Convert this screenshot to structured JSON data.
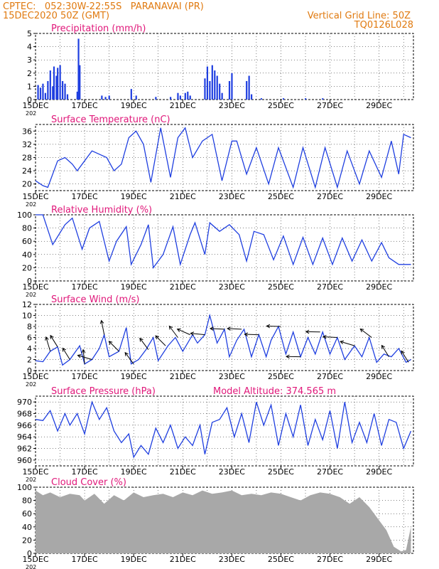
{
  "header": {
    "line1_left": "CPTEC:   052:30W-22:55S   PARANAVAI (PR)",
    "line2_left": "15DEC2020 50Z (GMT)",
    "line2_right": "Vertical Grid Line: 50Z",
    "line3_right": "TQ0126L028",
    "color": "#e07a10"
  },
  "colors": {
    "title": "#e0187a",
    "line": "#1f3fe0",
    "bar": "#1f3fe0",
    "cloud": "#a8a8a8",
    "grid": "#000000"
  },
  "x_axis": {
    "labels": [
      "15DEC",
      "17DEC",
      "19DEC",
      "21DEC",
      "23DEC",
      "25DEC",
      "27DEC",
      "29DEC"
    ],
    "sub_label": "202",
    "start_day": 15,
    "end_day": 30
  },
  "chart_data": [
    {
      "id": "precip",
      "type": "bar",
      "title": "Precipitation (mm/h)",
      "ylim": [
        0,
        5
      ],
      "yticks": [
        "0",
        "1",
        "2",
        "3",
        "4",
        "5"
      ],
      "bars": [
        [
          15.1,
          1.1
        ],
        [
          15.2,
          0.9
        ],
        [
          15.3,
          1.2
        ],
        [
          15.4,
          0.5
        ],
        [
          15.5,
          1.4
        ],
        [
          15.6,
          2.2
        ],
        [
          15.7,
          1.0
        ],
        [
          15.75,
          2.5
        ],
        [
          15.85,
          1.8
        ],
        [
          15.9,
          2.4
        ],
        [
          16.0,
          2.6
        ],
        [
          16.1,
          1.4
        ],
        [
          16.2,
          1.2
        ],
        [
          16.3,
          0.4
        ],
        [
          16.7,
          0.6
        ],
        [
          16.75,
          4.6
        ],
        [
          16.8,
          2.6
        ],
        [
          17.7,
          0.3
        ],
        [
          17.85,
          0.2
        ],
        [
          18.0,
          0.3
        ],
        [
          18.9,
          0.8
        ],
        [
          19.1,
          0.3
        ],
        [
          19.9,
          0.2
        ],
        [
          20.5,
          0.2
        ],
        [
          20.8,
          0.5
        ],
        [
          20.9,
          0.3
        ],
        [
          21.1,
          0.5
        ],
        [
          21.2,
          0.6
        ],
        [
          21.3,
          0.3
        ],
        [
          21.9,
          1.6
        ],
        [
          22.0,
          2.5
        ],
        [
          22.1,
          1.4
        ],
        [
          22.2,
          2.6
        ],
        [
          22.3,
          2.2
        ],
        [
          22.4,
          1.8
        ],
        [
          22.5,
          1.2
        ],
        [
          22.6,
          0.5
        ],
        [
          22.9,
          1.4
        ],
        [
          23.0,
          2.0
        ],
        [
          23.6,
          1.4
        ],
        [
          23.7,
          1.8
        ],
        [
          23.8,
          0.4
        ],
        [
          24.2,
          0.1
        ],
        [
          25.1,
          0.1
        ],
        [
          26.0,
          0.1
        ],
        [
          26.7,
          0.1
        ]
      ]
    },
    {
      "id": "temp",
      "type": "line",
      "title": "Surface Temperature (nC)",
      "ylim": [
        18,
        38
      ],
      "yticks": [
        "20",
        "24",
        "28",
        "32",
        "36"
      ],
      "ytick_values": [
        20,
        24,
        28,
        32,
        36
      ],
      "series": [
        [
          15.0,
          21
        ],
        [
          15.3,
          19.5
        ],
        [
          15.5,
          19
        ],
        [
          15.9,
          27
        ],
        [
          16.2,
          28
        ],
        [
          16.5,
          26
        ],
        [
          16.7,
          24
        ],
        [
          17.0,
          27
        ],
        [
          17.3,
          30
        ],
        [
          17.6,
          29
        ],
        [
          17.9,
          28
        ],
        [
          18.2,
          24
        ],
        [
          18.5,
          26
        ],
        [
          18.8,
          34
        ],
        [
          19.1,
          36
        ],
        [
          19.4,
          32
        ],
        [
          19.7,
          20.5
        ],
        [
          20.1,
          37
        ],
        [
          20.5,
          22
        ],
        [
          20.8,
          34
        ],
        [
          21.1,
          37
        ],
        [
          21.4,
          28
        ],
        [
          21.8,
          33
        ],
        [
          22.2,
          35
        ],
        [
          22.6,
          21
        ],
        [
          23.0,
          33
        ],
        [
          23.2,
          33
        ],
        [
          23.6,
          23
        ],
        [
          24.0,
          31
        ],
        [
          24.5,
          20
        ],
        [
          24.9,
          31
        ],
        [
          25.5,
          19
        ],
        [
          25.9,
          31
        ],
        [
          26.4,
          19
        ],
        [
          26.8,
          31
        ],
        [
          27.3,
          19
        ],
        [
          27.7,
          30
        ],
        [
          28.2,
          20
        ],
        [
          28.6,
          30
        ],
        [
          29.1,
          22
        ],
        [
          29.5,
          33
        ],
        [
          29.8,
          23
        ],
        [
          30.0,
          35
        ],
        [
          30.3,
          34
        ]
      ]
    },
    {
      "id": "rh",
      "type": "line",
      "title": "Relative Humidity (%)",
      "ylim": [
        0,
        100
      ],
      "yticks": [
        "0",
        "20",
        "40",
        "60",
        "80",
        "100"
      ],
      "series": [
        [
          15.0,
          100
        ],
        [
          15.3,
          100
        ],
        [
          15.7,
          55
        ],
        [
          16.2,
          85
        ],
        [
          16.5,
          95
        ],
        [
          16.9,
          48
        ],
        [
          17.2,
          80
        ],
        [
          17.6,
          90
        ],
        [
          18.0,
          30
        ],
        [
          18.3,
          60
        ],
        [
          18.7,
          82
        ],
        [
          18.9,
          25
        ],
        [
          19.3,
          55
        ],
        [
          19.6,
          85
        ],
        [
          19.8,
          20
        ],
        [
          20.2,
          40
        ],
        [
          20.6,
          82
        ],
        [
          20.9,
          25
        ],
        [
          21.3,
          70
        ],
        [
          21.5,
          88
        ],
        [
          21.9,
          40
        ],
        [
          22.1,
          88
        ],
        [
          22.5,
          75
        ],
        [
          22.9,
          85
        ],
        [
          23.3,
          70
        ],
        [
          23.6,
          30
        ],
        [
          23.9,
          75
        ],
        [
          24.3,
          70
        ],
        [
          24.7,
          32
        ],
        [
          25.1,
          68
        ],
        [
          25.5,
          25
        ],
        [
          25.9,
          66
        ],
        [
          26.3,
          25
        ],
        [
          26.7,
          65
        ],
        [
          27.1,
          25
        ],
        [
          27.5,
          65
        ],
        [
          27.9,
          30
        ],
        [
          28.3,
          62
        ],
        [
          28.7,
          30
        ],
        [
          29.1,
          58
        ],
        [
          29.4,
          35
        ],
        [
          29.8,
          25
        ],
        [
          30.3,
          25
        ]
      ]
    },
    {
      "id": "wind",
      "type": "line",
      "title": "Surface Wind (m/s)",
      "ylim": [
        0,
        12
      ],
      "yticks": [
        "0",
        "2",
        "4",
        "6",
        "8",
        "10",
        "12"
      ],
      "series": [
        [
          15.0,
          1.8
        ],
        [
          15.3,
          1.6
        ],
        [
          15.6,
          3.5
        ],
        [
          15.9,
          4.3
        ],
        [
          16.1,
          1.0
        ],
        [
          16.4,
          2.0
        ],
        [
          16.8,
          4.5
        ],
        [
          17.0,
          1.2
        ],
        [
          17.3,
          2.0
        ],
        [
          17.6,
          4.0
        ],
        [
          17.8,
          6.5
        ],
        [
          18.0,
          2.5
        ],
        [
          18.4,
          3.5
        ],
        [
          18.7,
          7.8
        ],
        [
          18.9,
          1.2
        ],
        [
          19.2,
          2.0
        ],
        [
          19.5,
          3.8
        ],
        [
          19.8,
          6.0
        ],
        [
          20.0,
          1.8
        ],
        [
          20.4,
          4.5
        ],
        [
          20.7,
          6.0
        ],
        [
          21.0,
          3.5
        ],
        [
          21.4,
          6.5
        ],
        [
          21.6,
          5.0
        ],
        [
          21.9,
          6.5
        ],
        [
          22.1,
          10.0
        ],
        [
          22.4,
          5.0
        ],
        [
          22.7,
          7.5
        ],
        [
          22.9,
          2.5
        ],
        [
          23.2,
          5.5
        ],
        [
          23.5,
          7.5
        ],
        [
          23.8,
          2.5
        ],
        [
          24.1,
          6.5
        ],
        [
          24.4,
          2.5
        ],
        [
          24.6,
          5.5
        ],
        [
          24.9,
          8.0
        ],
        [
          25.2,
          3.0
        ],
        [
          25.5,
          7.0
        ],
        [
          25.8,
          2.5
        ],
        [
          26.1,
          6.0
        ],
        [
          26.4,
          3.0
        ],
        [
          26.7,
          7.0
        ],
        [
          27.0,
          3.0
        ],
        [
          27.3,
          6.0
        ],
        [
          27.6,
          2.0
        ],
        [
          28.0,
          4.5
        ],
        [
          28.3,
          2.5
        ],
        [
          28.6,
          6.0
        ],
        [
          28.9,
          1.5
        ],
        [
          29.2,
          3.0
        ],
        [
          29.5,
          2.5
        ],
        [
          29.8,
          4.0
        ],
        [
          30.1,
          1.5
        ],
        [
          30.3,
          2.0
        ]
      ],
      "vectors": [
        [
          15.6,
          -0.3,
          1.0
        ],
        [
          15.9,
          -0.5,
          0.8
        ],
        [
          16.4,
          -0.5,
          0.8
        ],
        [
          17.0,
          -0.1,
          1.0
        ],
        [
          17.3,
          -1.0,
          0.3
        ],
        [
          17.8,
          -0.2,
          1.0
        ],
        [
          18.4,
          -0.7,
          0.7
        ],
        [
          19.0,
          -0.6,
          0.8
        ],
        [
          19.6,
          -0.6,
          0.8
        ],
        [
          20.3,
          -0.7,
          0.7
        ],
        [
          20.8,
          -0.6,
          0.8
        ],
        [
          21.3,
          -0.9,
          0.4
        ],
        [
          21.9,
          -1.0,
          0.1
        ],
        [
          22.7,
          -1.0,
          0.05
        ],
        [
          23.4,
          -1.0,
          0.05
        ],
        [
          24.1,
          -1.0,
          0.03
        ],
        [
          25.0,
          -1.0,
          0.03
        ],
        [
          25.8,
          -1.0,
          0.02
        ],
        [
          26.6,
          -1.0,
          0.02
        ],
        [
          27.3,
          -1.0,
          0.05
        ],
        [
          28.0,
          -1.0,
          0.3
        ],
        [
          28.7,
          -0.8,
          0.6
        ],
        [
          29.4,
          -0.5,
          0.8
        ],
        [
          30.2,
          -0.5,
          0.8
        ]
      ]
    },
    {
      "id": "press",
      "type": "line",
      "title": "Surface Pressure (hPa)",
      "extra_label": "Model Altitude: 374.565  m",
      "ylim": [
        959,
        971
      ],
      "yticks": [
        "960",
        "962",
        "964",
        "966",
        "968",
        "970"
      ],
      "ytick_values": [
        960,
        962,
        964,
        966,
        968,
        970
      ],
      "series": [
        [
          15.0,
          967
        ],
        [
          15.3,
          966.8
        ],
        [
          15.6,
          968.5
        ],
        [
          15.9,
          965
        ],
        [
          16.2,
          968
        ],
        [
          16.4,
          966
        ],
        [
          16.7,
          968
        ],
        [
          17.0,
          964.5
        ],
        [
          17.3,
          970
        ],
        [
          17.6,
          967
        ],
        [
          17.9,
          969
        ],
        [
          18.2,
          965
        ],
        [
          18.5,
          963
        ],
        [
          18.8,
          964.5
        ],
        [
          19.0,
          960.5
        ],
        [
          19.3,
          962.5
        ],
        [
          19.6,
          961
        ],
        [
          19.9,
          965.5
        ],
        [
          20.2,
          963
        ],
        [
          20.5,
          966
        ],
        [
          20.8,
          962
        ],
        [
          21.1,
          964
        ],
        [
          21.4,
          962.5
        ],
        [
          21.7,
          966
        ],
        [
          21.9,
          961
        ],
        [
          22.2,
          966.5
        ],
        [
          22.5,
          967
        ],
        [
          22.8,
          969
        ],
        [
          23.1,
          964
        ],
        [
          23.4,
          968
        ],
        [
          23.7,
          963
        ],
        [
          24.0,
          970
        ],
        [
          24.3,
          966
        ],
        [
          24.6,
          969.5
        ],
        [
          24.9,
          962.5
        ],
        [
          25.2,
          968
        ],
        [
          25.5,
          964
        ],
        [
          25.8,
          969.5
        ],
        [
          26.1,
          962.5
        ],
        [
          26.4,
          967
        ],
        [
          26.7,
          963.5
        ],
        [
          27.0,
          968.5
        ],
        [
          27.3,
          962
        ],
        [
          27.6,
          970
        ],
        [
          27.9,
          963
        ],
        [
          28.2,
          966.5
        ],
        [
          28.5,
          963
        ],
        [
          28.8,
          968
        ],
        [
          29.1,
          962.5
        ],
        [
          29.4,
          967
        ],
        [
          29.7,
          966.5
        ],
        [
          30.0,
          962
        ],
        [
          30.3,
          965
        ]
      ]
    },
    {
      "id": "cloud",
      "type": "area",
      "title": "Cloud Cover (%)",
      "ylim": [
        0,
        100
      ],
      "yticks": [
        "0",
        "20",
        "40",
        "60",
        "80",
        "100"
      ],
      "series": [
        [
          15.0,
          95
        ],
        [
          15.3,
          88
        ],
        [
          15.6,
          92
        ],
        [
          16.0,
          85
        ],
        [
          16.4,
          90
        ],
        [
          16.8,
          88
        ],
        [
          17.0,
          80
        ],
        [
          17.4,
          90
        ],
        [
          17.8,
          75
        ],
        [
          18.2,
          88
        ],
        [
          18.6,
          80
        ],
        [
          19.0,
          92
        ],
        [
          19.4,
          85
        ],
        [
          19.8,
          88
        ],
        [
          20.2,
          90
        ],
        [
          20.6,
          85
        ],
        [
          21.0,
          92
        ],
        [
          21.4,
          88
        ],
        [
          21.8,
          95
        ],
        [
          22.2,
          90
        ],
        [
          22.6,
          92
        ],
        [
          23.0,
          95
        ],
        [
          23.4,
          88
        ],
        [
          23.8,
          90
        ],
        [
          24.2,
          88
        ],
        [
          24.6,
          92
        ],
        [
          25.0,
          90
        ],
        [
          25.4,
          85
        ],
        [
          25.8,
          80
        ],
        [
          26.2,
          88
        ],
        [
          26.6,
          92
        ],
        [
          27.0,
          90
        ],
        [
          27.4,
          85
        ],
        [
          27.8,
          75
        ],
        [
          28.2,
          85
        ],
        [
          28.6,
          70
        ],
        [
          29.0,
          50
        ],
        [
          29.3,
          35
        ],
        [
          29.6,
          10
        ],
        [
          29.9,
          3
        ],
        [
          30.1,
          5
        ],
        [
          30.3,
          40
        ]
      ]
    }
  ]
}
